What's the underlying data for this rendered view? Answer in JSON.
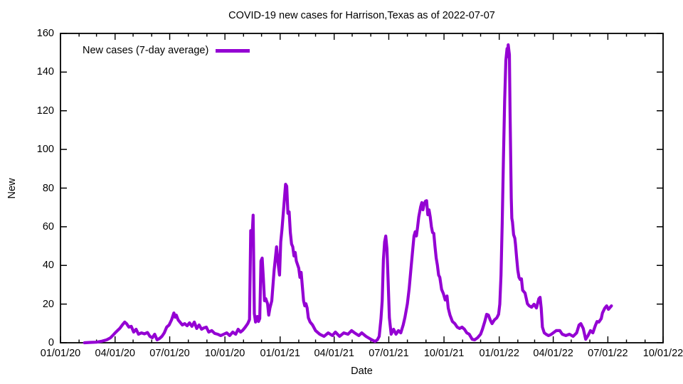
{
  "window": {
    "background": "#ffffff"
  },
  "chart_data": {
    "type": "line",
    "title": "COVID-19 new cases for Harrison,Texas as of 2022-07-07",
    "xlabel": "Date",
    "ylabel": "New",
    "grid": false,
    "legend_position": "top-left-inside",
    "legend": [
      {
        "label": "New cases (7-day average)",
        "color": "#9400d3"
      }
    ],
    "ylim": [
      0,
      160
    ],
    "yticks": [
      0,
      20,
      40,
      60,
      80,
      100,
      120,
      140,
      160
    ],
    "xlim": [
      "2020-01-01",
      "2022-10-01"
    ],
    "xticks": [
      {
        "date": "2020-01-01",
        "label": "01/01/20"
      },
      {
        "date": "2020-04-01",
        "label": "04/01/20"
      },
      {
        "date": "2020-07-01",
        "label": "07/01/20"
      },
      {
        "date": "2020-10-01",
        "label": "10/01/20"
      },
      {
        "date": "2021-01-01",
        "label": "01/01/21"
      },
      {
        "date": "2021-04-01",
        "label": "04/01/21"
      },
      {
        "date": "2021-07-01",
        "label": "07/01/21"
      },
      {
        "date": "2021-10-01",
        "label": "10/01/21"
      },
      {
        "date": "2022-01-01",
        "label": "01/01/22"
      },
      {
        "date": "2022-04-01",
        "label": "04/01/22"
      },
      {
        "date": "2022-07-01",
        "label": "07/01/22"
      },
      {
        "date": "2022-10-01",
        "label": "10/01/22"
      }
    ],
    "minor_xticks": "monthly",
    "series": [
      {
        "name": "New cases (7-day average)",
        "color": "#9400d3",
        "line_width": 4.2,
        "points": [
          [
            "2020-02-10",
            0
          ],
          [
            "2020-02-20",
            0.2
          ],
          [
            "2020-03-01",
            0.3
          ],
          [
            "2020-03-10",
            0.8
          ],
          [
            "2020-03-18",
            1.5
          ],
          [
            "2020-03-24",
            2.5
          ],
          [
            "2020-03-28",
            3.7
          ],
          [
            "2020-04-01",
            5.1
          ],
          [
            "2020-04-05",
            6.3
          ],
          [
            "2020-04-09",
            7.5
          ],
          [
            "2020-04-13",
            9.2
          ],
          [
            "2020-04-17",
            10.7
          ],
          [
            "2020-04-20",
            9.9
          ],
          [
            "2020-04-24",
            8.1
          ],
          [
            "2020-04-28",
            8.5
          ],
          [
            "2020-05-02",
            5.5
          ],
          [
            "2020-05-06",
            7.0
          ],
          [
            "2020-05-10",
            4.4
          ],
          [
            "2020-05-15",
            5.1
          ],
          [
            "2020-05-20",
            4.6
          ],
          [
            "2020-05-25",
            5.3
          ],
          [
            "2020-05-29",
            3.3
          ],
          [
            "2020-06-02",
            2.6
          ],
          [
            "2020-06-06",
            4.4
          ],
          [
            "2020-06-10",
            1.5
          ],
          [
            "2020-06-14",
            2.2
          ],
          [
            "2020-06-18",
            3.3
          ],
          [
            "2020-06-22",
            5.1
          ],
          [
            "2020-06-26",
            8.1
          ],
          [
            "2020-06-30",
            9.2
          ],
          [
            "2020-07-04",
            11.8
          ],
          [
            "2020-07-08",
            15.4
          ],
          [
            "2020-07-10",
            13.2
          ],
          [
            "2020-07-12",
            14.3
          ],
          [
            "2020-07-15",
            11.8
          ],
          [
            "2020-07-18",
            10.7
          ],
          [
            "2020-07-22",
            9.2
          ],
          [
            "2020-07-26",
            9.9
          ],
          [
            "2020-07-30",
            8.8
          ],
          [
            "2020-08-03",
            10.3
          ],
          [
            "2020-08-07",
            8.5
          ],
          [
            "2020-08-11",
            10.7
          ],
          [
            "2020-08-15",
            7.4
          ],
          [
            "2020-08-19",
            9.2
          ],
          [
            "2020-08-23",
            7.0
          ],
          [
            "2020-08-27",
            7.7
          ],
          [
            "2020-08-31",
            8.1
          ],
          [
            "2020-09-04",
            5.5
          ],
          [
            "2020-09-09",
            6.3
          ],
          [
            "2020-09-14",
            4.8
          ],
          [
            "2020-09-19",
            4.4
          ],
          [
            "2020-09-24",
            3.7
          ],
          [
            "2020-09-29",
            4.4
          ],
          [
            "2020-10-04",
            5.1
          ],
          [
            "2020-10-09",
            3.7
          ],
          [
            "2020-10-14",
            5.5
          ],
          [
            "2020-10-19",
            4.4
          ],
          [
            "2020-10-23",
            7.0
          ],
          [
            "2020-10-27",
            5.5
          ],
          [
            "2020-10-31",
            6.6
          ],
          [
            "2020-11-04",
            8.1
          ],
          [
            "2020-11-08",
            9.9
          ],
          [
            "2020-11-11",
            12.0
          ],
          [
            "2020-11-13",
            58.0
          ],
          [
            "2020-11-15",
            53.0
          ],
          [
            "2020-11-17",
            66.0
          ],
          [
            "2020-11-19",
            15.0
          ],
          [
            "2020-11-21",
            10.7
          ],
          [
            "2020-11-24",
            13.6
          ],
          [
            "2020-11-26",
            11.0
          ],
          [
            "2020-11-28",
            12.5
          ],
          [
            "2020-11-30",
            42.3
          ],
          [
            "2020-12-02",
            43.8
          ],
          [
            "2020-12-04",
            33.8
          ],
          [
            "2020-12-06",
            21.7
          ],
          [
            "2020-12-08",
            22.8
          ],
          [
            "2020-12-11",
            20.2
          ],
          [
            "2020-12-13",
            14.3
          ],
          [
            "2020-12-15",
            18.0
          ],
          [
            "2020-12-18",
            21.7
          ],
          [
            "2020-12-22",
            37.5
          ],
          [
            "2020-12-26",
            49.6
          ],
          [
            "2020-12-29",
            40.1
          ],
          [
            "2020-12-31",
            35.0
          ],
          [
            "2021-01-02",
            52.2
          ],
          [
            "2021-01-04",
            58.5
          ],
          [
            "2021-01-07",
            70.0
          ],
          [
            "2021-01-10",
            82.0
          ],
          [
            "2021-01-12",
            81.0
          ],
          [
            "2021-01-14",
            66.9
          ],
          [
            "2021-01-16",
            67.7
          ],
          [
            "2021-01-18",
            57.0
          ],
          [
            "2021-01-20",
            51.1
          ],
          [
            "2021-01-22",
            49.6
          ],
          [
            "2021-01-24",
            44.9
          ],
          [
            "2021-01-26",
            46.7
          ],
          [
            "2021-01-28",
            42.3
          ],
          [
            "2021-02-01",
            38.6
          ],
          [
            "2021-02-03",
            33.8
          ],
          [
            "2021-02-05",
            36.4
          ],
          [
            "2021-02-07",
            29.0
          ],
          [
            "2021-02-09",
            21.7
          ],
          [
            "2021-02-11",
            19.1
          ],
          [
            "2021-02-13",
            20.2
          ],
          [
            "2021-02-15",
            18.0
          ],
          [
            "2021-02-17",
            12.9
          ],
          [
            "2021-02-20",
            10.7
          ],
          [
            "2021-02-24",
            9.2
          ],
          [
            "2021-03-01",
            6.3
          ],
          [
            "2021-03-08",
            4.4
          ],
          [
            "2021-03-15",
            3.3
          ],
          [
            "2021-03-22",
            5.1
          ],
          [
            "2021-03-29",
            3.7
          ],
          [
            "2021-04-03",
            5.5
          ],
          [
            "2021-04-10",
            3.3
          ],
          [
            "2021-04-17",
            5.1
          ],
          [
            "2021-04-24",
            4.4
          ],
          [
            "2021-04-30",
            6.3
          ],
          [
            "2021-05-05",
            5.1
          ],
          [
            "2021-05-12",
            3.7
          ],
          [
            "2021-05-17",
            5.1
          ],
          [
            "2021-05-24",
            3.3
          ],
          [
            "2021-06-01",
            1.8
          ],
          [
            "2021-06-08",
            0.7
          ],
          [
            "2021-06-12",
            1.5
          ],
          [
            "2021-06-15",
            3.3
          ],
          [
            "2021-06-18",
            12.5
          ],
          [
            "2021-06-20",
            21.7
          ],
          [
            "2021-06-22",
            43.0
          ],
          [
            "2021-06-24",
            52.2
          ],
          [
            "2021-06-26",
            55.2
          ],
          [
            "2021-06-28",
            48.5
          ],
          [
            "2021-06-30",
            31.3
          ],
          [
            "2021-07-02",
            12.9
          ],
          [
            "2021-07-05",
            4.4
          ],
          [
            "2021-07-09",
            7.0
          ],
          [
            "2021-07-13",
            4.4
          ],
          [
            "2021-07-17",
            6.3
          ],
          [
            "2021-07-21",
            5.1
          ],
          [
            "2021-07-25",
            9.2
          ],
          [
            "2021-07-28",
            13.2
          ],
          [
            "2021-08-01",
            20.2
          ],
          [
            "2021-08-04",
            28.0
          ],
          [
            "2021-08-07",
            38.6
          ],
          [
            "2021-08-10",
            48.5
          ],
          [
            "2021-08-12",
            55.2
          ],
          [
            "2021-08-14",
            57.4
          ],
          [
            "2021-08-16",
            55.2
          ],
          [
            "2021-08-18",
            60.0
          ],
          [
            "2021-08-20",
            65.1
          ],
          [
            "2021-08-23",
            70.2
          ],
          [
            "2021-08-25",
            72.5
          ],
          [
            "2021-08-27",
            68.8
          ],
          [
            "2021-08-29",
            71.8
          ],
          [
            "2021-08-31",
            73.2
          ],
          [
            "2021-09-02",
            73.5
          ],
          [
            "2021-09-04",
            66.2
          ],
          [
            "2021-09-06",
            68.8
          ],
          [
            "2021-09-08",
            65.1
          ],
          [
            "2021-09-10",
            60.0
          ],
          [
            "2021-09-12",
            57.0
          ],
          [
            "2021-09-14",
            56.6
          ],
          [
            "2021-09-16",
            49.8
          ],
          [
            "2021-09-18",
            43.8
          ],
          [
            "2021-09-20",
            40.1
          ],
          [
            "2021-09-22",
            35.0
          ],
          [
            "2021-09-24",
            33.8
          ],
          [
            "2021-09-27",
            27.6
          ],
          [
            "2021-09-30",
            25.4
          ],
          [
            "2021-10-03",
            22.1
          ],
          [
            "2021-10-06",
            24.2
          ],
          [
            "2021-10-08",
            18.0
          ],
          [
            "2021-10-11",
            14.3
          ],
          [
            "2021-10-15",
            11.0
          ],
          [
            "2021-10-19",
            9.9
          ],
          [
            "2021-10-23",
            8.1
          ],
          [
            "2021-10-27",
            7.4
          ],
          [
            "2021-10-31",
            8.1
          ],
          [
            "2021-11-04",
            7.0
          ],
          [
            "2021-11-08",
            5.1
          ],
          [
            "2021-11-12",
            4.4
          ],
          [
            "2021-11-17",
            1.8
          ],
          [
            "2021-11-21",
            1.5
          ],
          [
            "2021-11-26",
            2.6
          ],
          [
            "2021-12-01",
            4.4
          ],
          [
            "2021-12-04",
            7.0
          ],
          [
            "2021-12-08",
            11.0
          ],
          [
            "2021-12-11",
            14.7
          ],
          [
            "2021-12-14",
            14.3
          ],
          [
            "2021-12-17",
            11.8
          ],
          [
            "2021-12-20",
            9.9
          ],
          [
            "2021-12-24",
            11.8
          ],
          [
            "2021-12-28",
            12.9
          ],
          [
            "2021-12-31",
            14.7
          ],
          [
            "2022-01-02",
            20.0
          ],
          [
            "2022-01-04",
            35.0
          ],
          [
            "2022-01-06",
            62.0
          ],
          [
            "2022-01-08",
            95.0
          ],
          [
            "2022-01-10",
            125.0
          ],
          [
            "2022-01-12",
            146.0
          ],
          [
            "2022-01-14",
            152.2
          ],
          [
            "2022-01-15",
            148.0
          ],
          [
            "2022-01-16",
            154.1
          ],
          [
            "2022-01-18",
            149.0
          ],
          [
            "2022-01-19",
            120.0
          ],
          [
            "2022-01-21",
            75.0
          ],
          [
            "2022-01-22",
            64.4
          ],
          [
            "2022-01-23",
            62.5
          ],
          [
            "2022-01-25",
            55.9
          ],
          [
            "2022-01-27",
            54.1
          ],
          [
            "2022-01-28",
            51.1
          ],
          [
            "2022-01-30",
            43.8
          ],
          [
            "2022-02-01",
            37.5
          ],
          [
            "2022-02-03",
            33.8
          ],
          [
            "2022-02-05",
            32.7
          ],
          [
            "2022-02-07",
            33.1
          ],
          [
            "2022-02-09",
            27.2
          ],
          [
            "2022-02-13",
            25.7
          ],
          [
            "2022-02-17",
            20.2
          ],
          [
            "2022-02-20",
            19.1
          ],
          [
            "2022-02-24",
            18.4
          ],
          [
            "2022-02-28",
            19.9
          ],
          [
            "2022-03-04",
            18.0
          ],
          [
            "2022-03-08",
            22.8
          ],
          [
            "2022-03-10",
            23.5
          ],
          [
            "2022-03-12",
            18.0
          ],
          [
            "2022-03-14",
            8.1
          ],
          [
            "2022-03-17",
            5.1
          ],
          [
            "2022-03-20",
            4.4
          ],
          [
            "2022-03-24",
            3.7
          ],
          [
            "2022-03-28",
            4.2
          ],
          [
            "2022-04-01",
            5.1
          ],
          [
            "2022-04-06",
            6.3
          ],
          [
            "2022-04-12",
            6.3
          ],
          [
            "2022-04-16",
            4.4
          ],
          [
            "2022-04-22",
            3.7
          ],
          [
            "2022-04-28",
            4.4
          ],
          [
            "2022-05-04",
            3.3
          ],
          [
            "2022-05-10",
            5.1
          ],
          [
            "2022-05-14",
            9.2
          ],
          [
            "2022-05-17",
            9.9
          ],
          [
            "2022-05-21",
            7.4
          ],
          [
            "2022-05-25",
            1.8
          ],
          [
            "2022-05-29",
            3.7
          ],
          [
            "2022-06-02",
            6.3
          ],
          [
            "2022-06-06",
            5.1
          ],
          [
            "2022-06-10",
            8.8
          ],
          [
            "2022-06-13",
            11.0
          ],
          [
            "2022-06-16",
            10.7
          ],
          [
            "2022-06-20",
            12.5
          ],
          [
            "2022-06-22",
            15.4
          ],
          [
            "2022-06-26",
            18.0
          ],
          [
            "2022-06-29",
            19.1
          ],
          [
            "2022-07-02",
            17.3
          ],
          [
            "2022-07-05",
            18.4
          ],
          [
            "2022-07-07",
            19.1
          ]
        ]
      }
    ]
  }
}
